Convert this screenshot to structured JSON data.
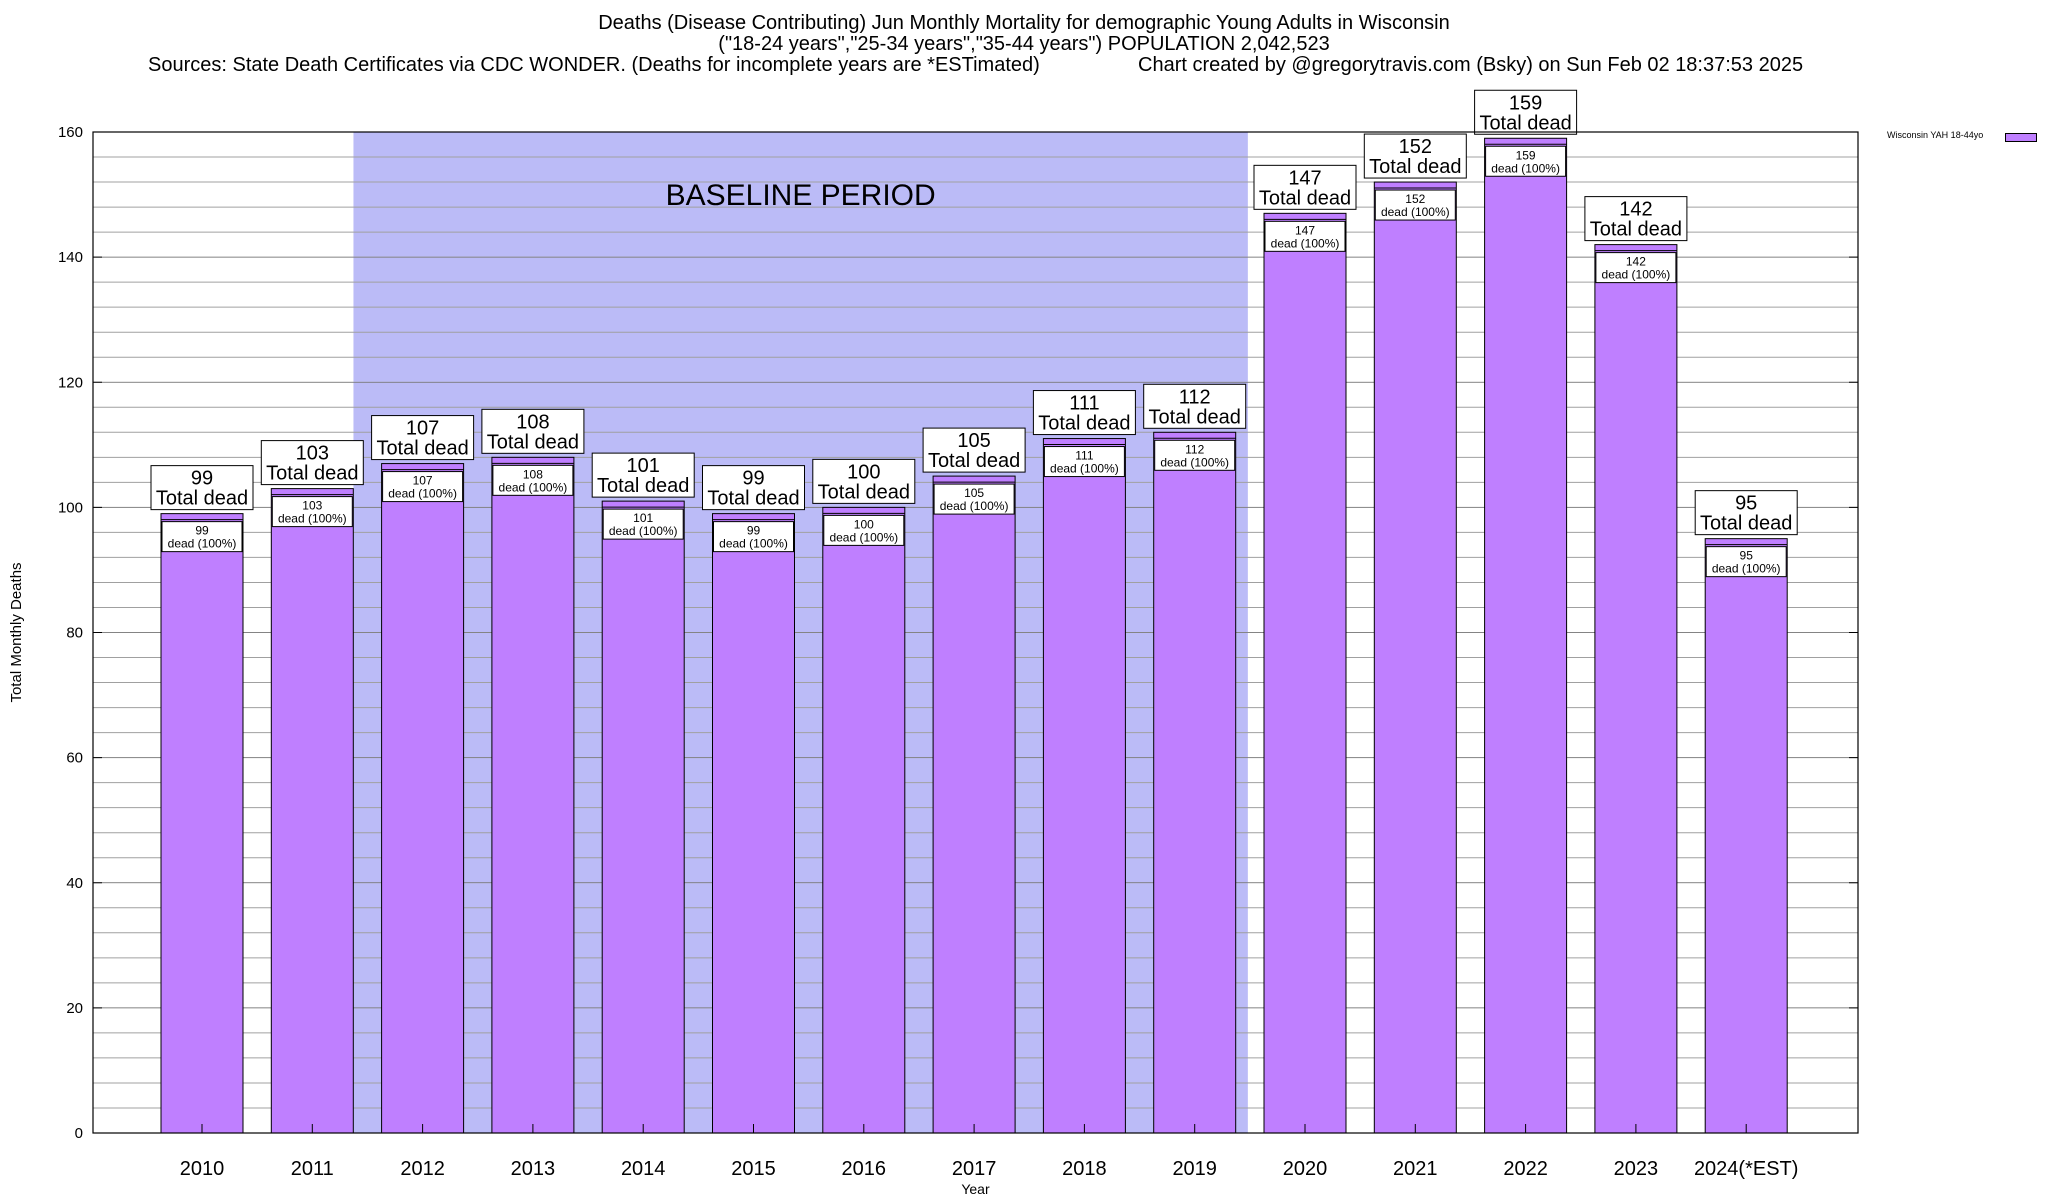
{
  "title": {
    "line1": "Deaths (Disease Contributing) Jun Monthly Mortality for demographic Young Adults in Wisconsin",
    "line2": "(\"18-24 years\",\"25-34 years\",\"35-44 years\") POPULATION 2,042,523",
    "line3": "Sources: State Death Certificates via CDC WONDER. (Deaths for incomplete years are *ESTimated)",
    "credit": "Chart created by @gregorytravis.com (Bsky) on Sun Feb 02 18:37:53 2025"
  },
  "colors": {
    "bar": "#bf7fff",
    "baseline_band": "#bbbbf7",
    "grid": "#a0a0a0"
  },
  "chart_data": {
    "type": "bar",
    "categories": [
      "2010",
      "2011",
      "2012",
      "2013",
      "2014",
      "2015",
      "2016",
      "2017",
      "2018",
      "2019",
      "2020",
      "2021",
      "2022",
      "2023",
      "2024(*EST)"
    ],
    "series": [
      {
        "name": "Wisconsin YAH 18-44yo",
        "values": [
          99,
          103,
          107,
          108,
          101,
          99,
          100,
          105,
          111,
          112,
          147,
          152,
          159,
          142,
          95
        ]
      }
    ],
    "xlabel": "Year",
    "ylabel": "Total Monthly Deaths",
    "ylim": [
      0,
      160
    ],
    "yticks": [
      0,
      20,
      40,
      60,
      80,
      100,
      120,
      140,
      160
    ],
    "minor_grid_step": 4,
    "grid": true,
    "legend": "top-right",
    "top_label_suffix": "Total dead",
    "inner_label_suffix": "dead (100%)",
    "annotations": [
      {
        "text": "BASELINE PERIOD",
        "from": "2012",
        "to": "2019"
      }
    ]
  }
}
